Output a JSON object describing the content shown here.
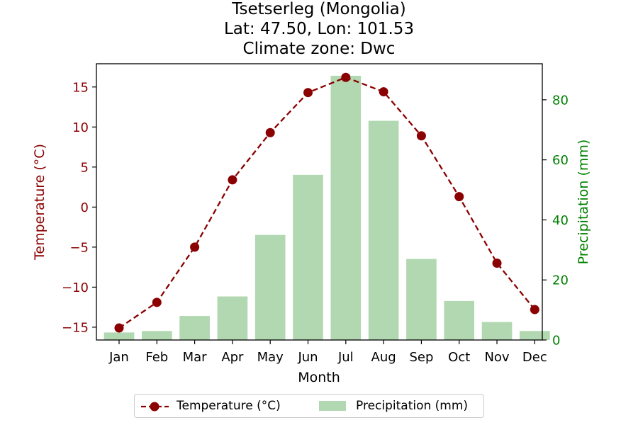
{
  "chart_data": {
    "type": "bar+line",
    "title_lines": [
      "Tsetserleg (Mongolia)",
      "Lat: 47.50, Lon: 101.53",
      "Climate zone: Dwc"
    ],
    "xlabel": "Month",
    "categories": [
      "Jan",
      "Feb",
      "Mar",
      "Apr",
      "May",
      "Jun",
      "Jul",
      "Aug",
      "Sep",
      "Oct",
      "Nov",
      "Dec"
    ],
    "left_axis": {
      "label": "Temperature (°C)",
      "ylim": [
        -16.6,
        17.9
      ],
      "ticks": [
        -15,
        -10,
        -5,
        0,
        5,
        10,
        15
      ],
      "tick_labels": [
        "−15",
        "−10",
        "−5",
        "0",
        "5",
        "10",
        "15"
      ],
      "color": "#8b0000"
    },
    "right_axis": {
      "label": "Precipitation (mm)",
      "ylim": [
        0,
        92
      ],
      "ticks": [
        0,
        20,
        40,
        60,
        80
      ],
      "tick_labels": [
        "0",
        "20",
        "40",
        "60",
        "80"
      ],
      "color": "#008000"
    },
    "series": [
      {
        "name": "Temperature (°C)",
        "type": "line",
        "axis": "left",
        "color": "#8b0000",
        "style": "dashed",
        "marker": "circle",
        "values": [
          -15.1,
          -11.9,
          -5.0,
          3.4,
          9.3,
          14.3,
          16.2,
          14.4,
          8.9,
          1.3,
          -7.0,
          -12.8
        ]
      },
      {
        "name": "Precipitation (mm)",
        "type": "bar",
        "axis": "right",
        "color": "#b2d8b2",
        "values": [
          2.5,
          3.0,
          8.0,
          14.5,
          35.0,
          55.0,
          88.0,
          73.0,
          27.0,
          13.0,
          6.0,
          3.0
        ]
      }
    ],
    "legend_position": "bottom-center",
    "grid": false
  }
}
